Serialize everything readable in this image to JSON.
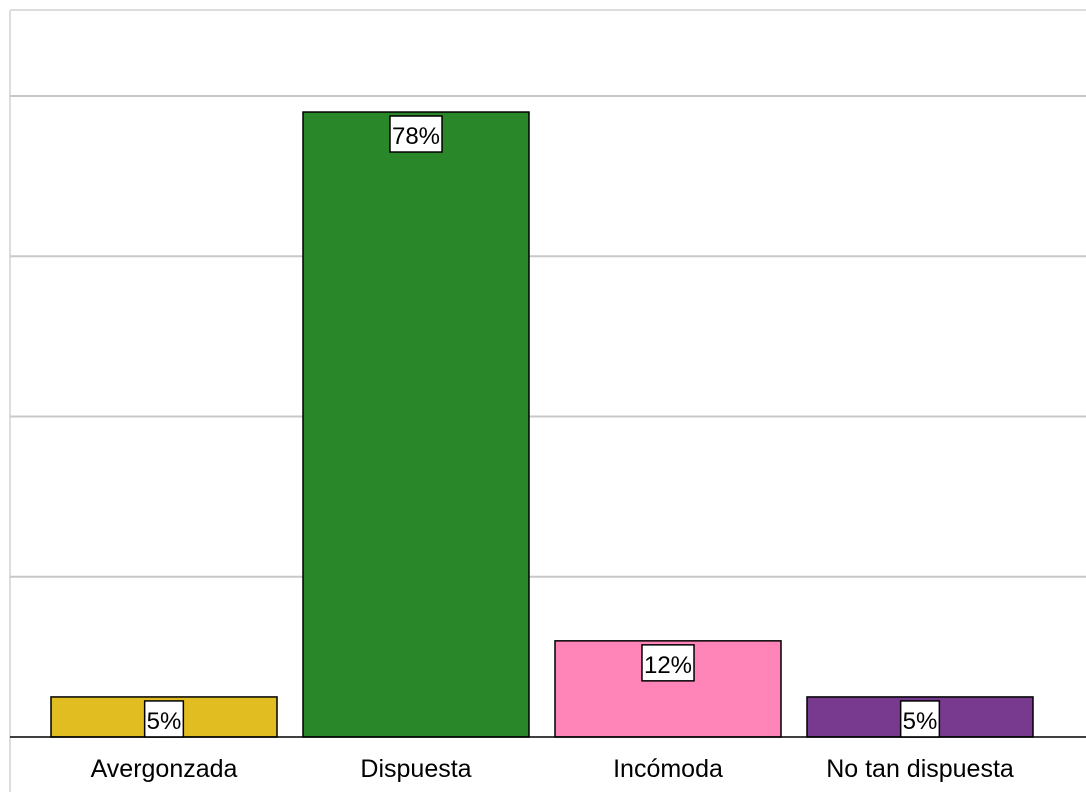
{
  "chart_data": {
    "type": "bar",
    "title": "",
    "xlabel": "",
    "ylabel": "",
    "categories": [
      "Avergonzada",
      "Dispuesta",
      "Incómoda",
      "No tan dispuesta"
    ],
    "values": [
      5,
      78,
      12,
      5
    ],
    "data_labels": [
      "5%",
      "78%",
      "12%",
      "5%"
    ],
    "colors": [
      "#e1bd22",
      "#2a8729",
      "#ff84b8",
      "#773a8e"
    ],
    "ylim": [
      0,
      80
    ],
    "gridlines": [
      0,
      20,
      40,
      60,
      80
    ],
    "grid": true,
    "legend": "none",
    "unit": "%"
  }
}
